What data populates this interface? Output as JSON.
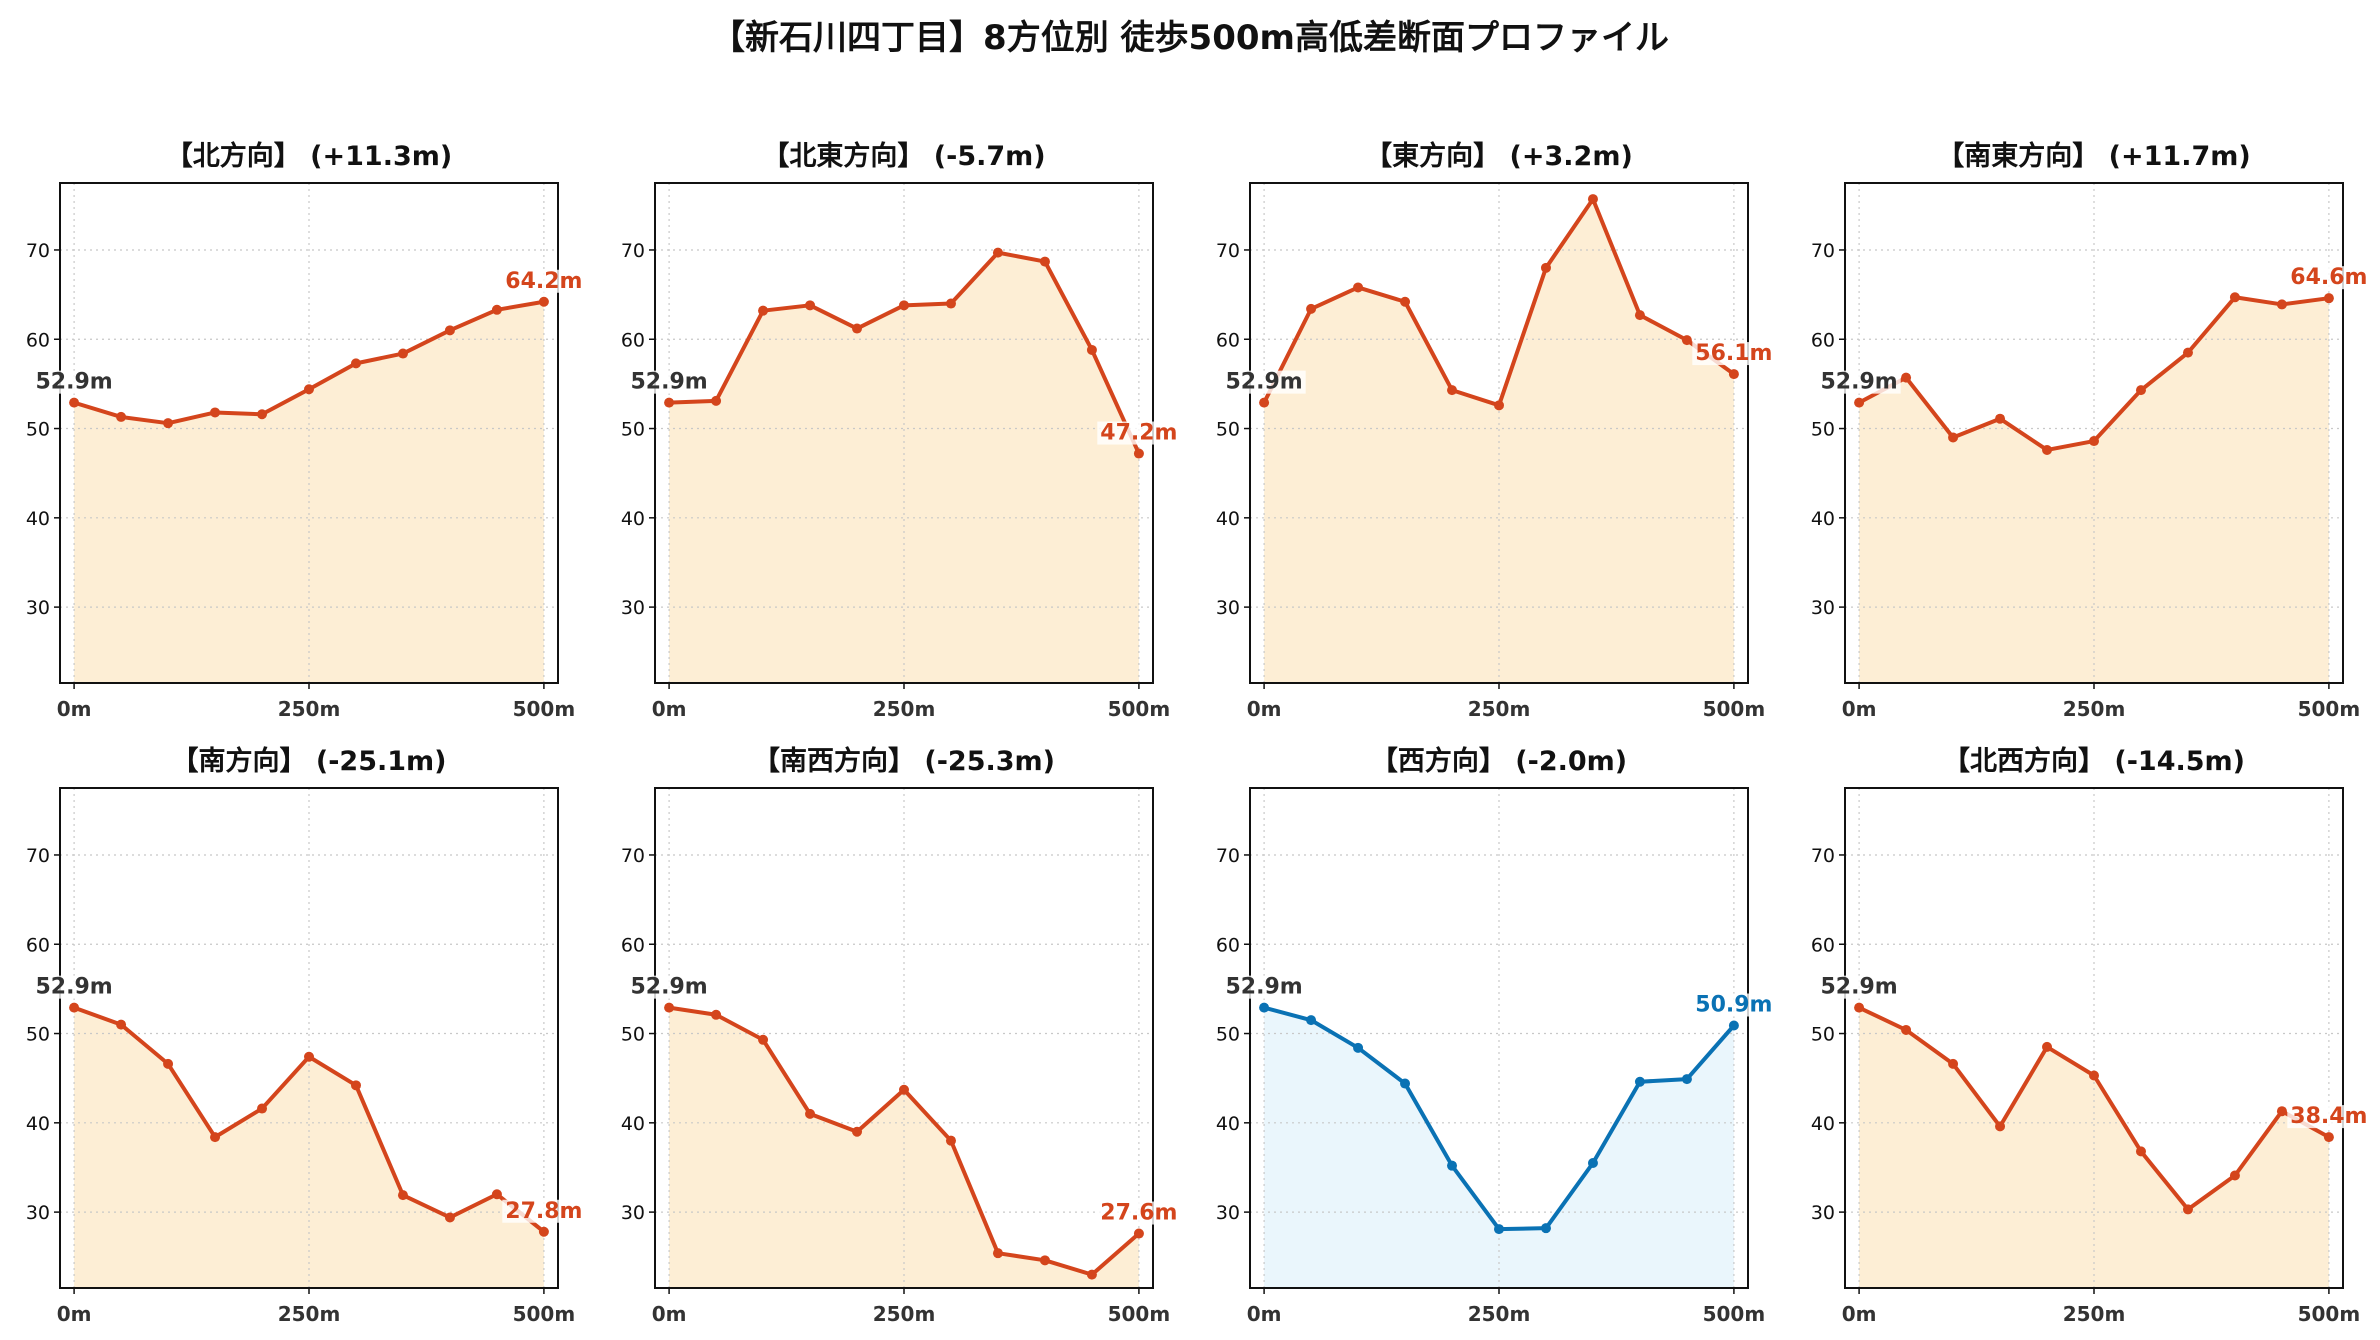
{
  "figure": {
    "title": "【新石川四丁目】8方位別 徒歩500m高低差断面プロファイル"
  },
  "colors": {
    "up_line": "#d4451c",
    "up_fill": "#fdeed5",
    "down_line": "#0a72b4",
    "down_fill": "#eaf6fc",
    "start_label": "#333333",
    "grid": "#c8c8c8"
  },
  "chart_data": [
    {
      "type": "area",
      "title": "【北方向】 (+11.3m)",
      "x": [
        0,
        50,
        100,
        150,
        200,
        250,
        300,
        350,
        400,
        450,
        500
      ],
      "y": [
        52.9,
        51.3,
        50.6,
        51.8,
        51.6,
        54.4,
        57.3,
        58.4,
        61.0,
        63.3,
        64.2
      ],
      "xticks": [
        "0m",
        "250m",
        "500m"
      ],
      "yticks": [
        30,
        40,
        50,
        60,
        70
      ],
      "xlim": [
        -15,
        515
      ],
      "ylim": [
        21.5,
        77.5
      ],
      "start_label": "52.9m",
      "end_label": "64.2m",
      "color_scheme": "orange",
      "grid": true
    },
    {
      "type": "area",
      "title": "【北東方向】 (-5.7m)",
      "x": [
        0,
        50,
        100,
        150,
        200,
        250,
        300,
        350,
        400,
        450,
        500
      ],
      "y": [
        52.9,
        53.1,
        63.2,
        63.8,
        61.2,
        63.8,
        64.0,
        69.7,
        68.7,
        58.8,
        47.2
      ],
      "xticks": [
        "0m",
        "250m",
        "500m"
      ],
      "yticks": [
        30,
        40,
        50,
        60,
        70
      ],
      "xlim": [
        -15,
        515
      ],
      "ylim": [
        21.5,
        77.5
      ],
      "start_label": "52.9m",
      "end_label": "47.2m",
      "color_scheme": "orange",
      "grid": true
    },
    {
      "type": "area",
      "title": "【東方向】 (+3.2m)",
      "x": [
        0,
        50,
        100,
        150,
        200,
        250,
        300,
        350,
        400,
        450,
        500
      ],
      "y": [
        52.9,
        63.4,
        65.8,
        64.2,
        54.3,
        52.6,
        68.0,
        75.7,
        62.7,
        59.9,
        56.1
      ],
      "xticks": [
        "0m",
        "250m",
        "500m"
      ],
      "yticks": [
        30,
        40,
        50,
        60,
        70
      ],
      "xlim": [
        -15,
        515
      ],
      "ylim": [
        21.5,
        77.5
      ],
      "start_label": "52.9m",
      "end_label": "56.1m",
      "color_scheme": "orange",
      "grid": true
    },
    {
      "type": "area",
      "title": "【南東方向】 (+11.7m)",
      "x": [
        0,
        50,
        100,
        150,
        200,
        250,
        300,
        350,
        400,
        450,
        500
      ],
      "y": [
        52.9,
        55.7,
        49.0,
        51.1,
        47.6,
        48.6,
        54.3,
        58.5,
        64.7,
        63.9,
        64.6
      ],
      "xticks": [
        "0m",
        "250m",
        "500m"
      ],
      "yticks": [
        30,
        40,
        50,
        60,
        70
      ],
      "xlim": [
        -15,
        515
      ],
      "ylim": [
        21.5,
        77.5
      ],
      "start_label": "52.9m",
      "end_label": "64.6m",
      "color_scheme": "orange",
      "grid": true
    },
    {
      "type": "area",
      "title": "【南方向】 (-25.1m)",
      "x": [
        0,
        50,
        100,
        150,
        200,
        250,
        300,
        350,
        400,
        450,
        500
      ],
      "y": [
        52.9,
        51.0,
        46.6,
        38.4,
        41.6,
        47.4,
        44.2,
        31.9,
        29.4,
        32.0,
        27.8
      ],
      "xticks": [
        "0m",
        "250m",
        "500m"
      ],
      "yticks": [
        30,
        40,
        50,
        60,
        70
      ],
      "xlim": [
        -15,
        515
      ],
      "ylim": [
        21.5,
        77.5
      ],
      "start_label": "52.9m",
      "end_label": "27.8m",
      "color_scheme": "orange",
      "grid": true
    },
    {
      "type": "area",
      "title": "【南西方向】 (-25.3m)",
      "x": [
        0,
        50,
        100,
        150,
        200,
        250,
        300,
        350,
        400,
        450,
        500
      ],
      "y": [
        52.9,
        52.1,
        49.3,
        41.0,
        39.0,
        43.7,
        38.0,
        25.4,
        24.6,
        23.0,
        27.6
      ],
      "xticks": [
        "0m",
        "250m",
        "500m"
      ],
      "yticks": [
        30,
        40,
        50,
        60,
        70
      ],
      "xlim": [
        -15,
        515
      ],
      "ylim": [
        21.5,
        77.5
      ],
      "start_label": "52.9m",
      "end_label": "27.6m",
      "color_scheme": "orange",
      "grid": true
    },
    {
      "type": "area",
      "title": "【西方向】 (-2.0m)",
      "x": [
        0,
        50,
        100,
        150,
        200,
        250,
        300,
        350,
        400,
        450,
        500
      ],
      "y": [
        52.9,
        51.5,
        48.4,
        44.4,
        35.2,
        28.1,
        28.2,
        35.5,
        44.6,
        44.9,
        50.9
      ],
      "xticks": [
        "0m",
        "250m",
        "500m"
      ],
      "yticks": [
        30,
        40,
        50,
        60,
        70
      ],
      "xlim": [
        -15,
        515
      ],
      "ylim": [
        21.5,
        77.5
      ],
      "start_label": "52.9m",
      "end_label": "50.9m",
      "color_scheme": "blue",
      "grid": true
    },
    {
      "type": "area",
      "title": "【北西方向】 (-14.5m)",
      "x": [
        0,
        50,
        100,
        150,
        200,
        250,
        300,
        350,
        400,
        450,
        500
      ],
      "y": [
        52.9,
        50.4,
        46.6,
        39.6,
        48.5,
        45.3,
        36.8,
        30.3,
        34.1,
        41.3,
        38.4
      ],
      "xticks": [
        "0m",
        "250m",
        "500m"
      ],
      "yticks": [
        30,
        40,
        50,
        60,
        70
      ],
      "xlim": [
        -15,
        515
      ],
      "ylim": [
        21.5,
        77.5
      ],
      "start_label": "52.9m",
      "end_label": "38.4m",
      "color_scheme": "orange",
      "grid": true
    }
  ]
}
